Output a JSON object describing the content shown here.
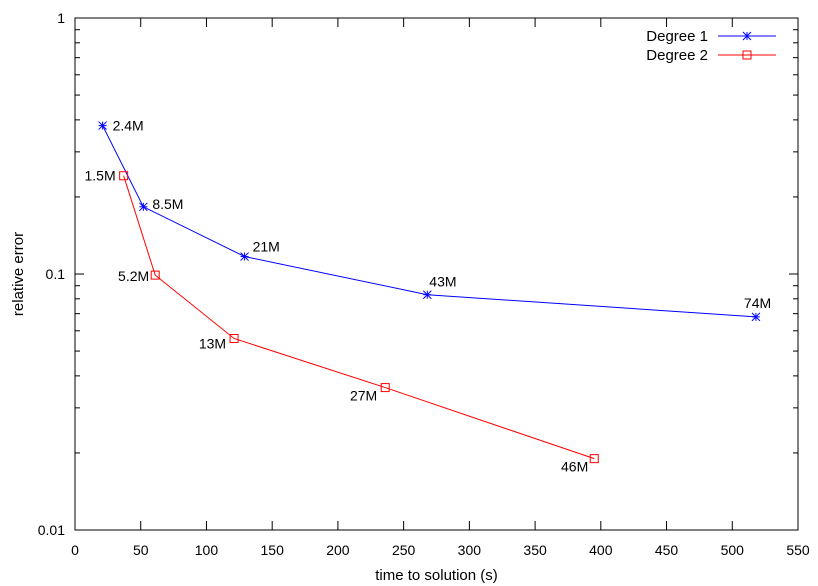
{
  "chart_data": {
    "type": "line",
    "title": "",
    "xlabel": "time to solution (s)",
    "ylabel": "relative error",
    "xlim": [
      0,
      550
    ],
    "ylim": [
      0.01,
      1
    ],
    "y_scale": "log",
    "x_ticks": [
      0,
      50,
      100,
      150,
      200,
      250,
      300,
      350,
      400,
      450,
      500,
      550
    ],
    "y_ticks": [
      {
        "value": 0.01,
        "label": "0.01"
      },
      {
        "value": 0.1,
        "label": "0.1"
      },
      {
        "value": 1,
        "label": "1"
      }
    ],
    "grid": false,
    "legend_position": "top-right",
    "series": [
      {
        "name": "Degree 1",
        "color": "#0000ff",
        "marker": "asterisk",
        "points": [
          {
            "x": 21,
            "y": 0.38,
            "label": "2.4M"
          },
          {
            "x": 52,
            "y": 0.183,
            "label": "8.5M"
          },
          {
            "x": 129,
            "y": 0.117,
            "label": "21M"
          },
          {
            "x": 268,
            "y": 0.083,
            "label": "43M"
          },
          {
            "x": 518,
            "y": 0.068,
            "label": "74M"
          }
        ]
      },
      {
        "name": "Degree 2",
        "color": "#ff0000",
        "marker": "square",
        "points": [
          {
            "x": 37,
            "y": 0.242,
            "label": "1.5M"
          },
          {
            "x": 61,
            "y": 0.099,
            "label": "5.2M"
          },
          {
            "x": 121,
            "y": 0.056,
            "label": "13M"
          },
          {
            "x": 236,
            "y": 0.036,
            "label": "27M"
          },
          {
            "x": 395,
            "y": 0.019,
            "label": "46M"
          }
        ]
      }
    ]
  }
}
